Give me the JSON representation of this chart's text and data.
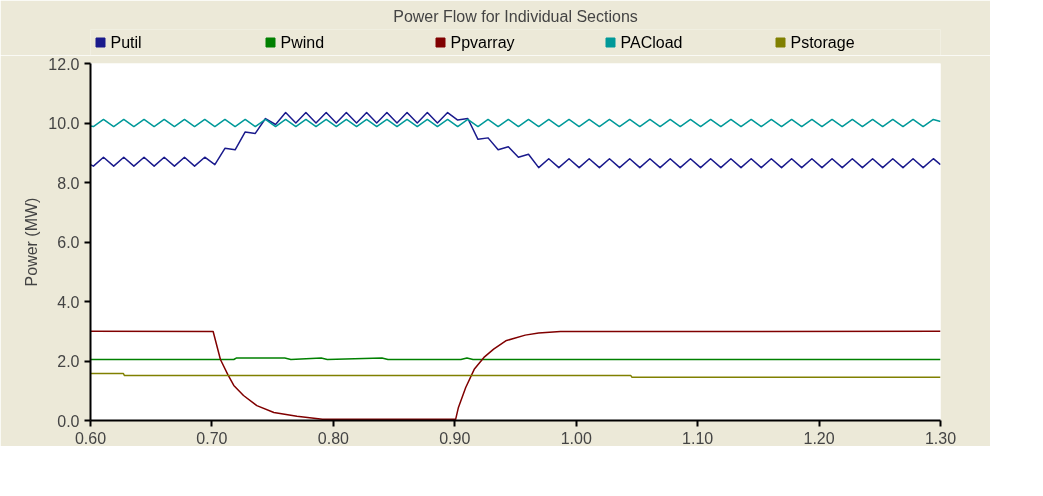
{
  "chart_data": {
    "type": "line",
    "title": "Power Flow for Individual Sections",
    "ylabel": "Power (MW)",
    "x": [
      0.6,
      0.6024,
      0.6107,
      0.6191,
      0.6274,
      0.6357,
      0.6441,
      0.6524,
      0.6607,
      0.6691,
      0.6774,
      0.6857,
      0.6941,
      0.7024,
      0.7107,
      0.7191,
      0.7274,
      0.7357,
      0.7441,
      0.7524,
      0.7607,
      0.7691,
      0.7774,
      0.7857,
      0.7941,
      0.8024,
      0.8107,
      0.8191,
      0.8274,
      0.8357,
      0.8441,
      0.8524,
      0.8607,
      0.8691,
      0.8774,
      0.8857,
      0.8941,
      0.9024,
      0.9107,
      0.9191,
      0.9274,
      0.9357,
      0.9441,
      0.9524,
      0.9607,
      0.9691,
      0.9774,
      0.9857,
      0.9941,
      1.0024,
      1.0107,
      1.0191,
      1.0274,
      1.0357,
      1.0441,
      1.0524,
      1.0607,
      1.0691,
      1.0774,
      1.0857,
      1.0941,
      1.1024,
      1.1107,
      1.1191,
      1.1274,
      1.1357,
      1.1441,
      1.1524,
      1.1607,
      1.1691,
      1.1774,
      1.1857,
      1.1941,
      1.2024,
      1.2107,
      1.2191,
      1.2274,
      1.2357,
      1.2441,
      1.2524,
      1.2607,
      1.2691,
      1.2774,
      1.2857,
      1.2941,
      1.3
    ],
    "series": [
      {
        "name": "Putil",
        "color": "#1a1a8c",
        "values": [
          8.6,
          8.55,
          8.85,
          8.55,
          8.85,
          8.55,
          8.85,
          8.55,
          8.85,
          8.55,
          8.85,
          8.55,
          8.85,
          8.6,
          9.15,
          9.1,
          9.7,
          9.65,
          10.15,
          9.95,
          10.35,
          10.0,
          10.35,
          10.0,
          10.35,
          10.0,
          10.35,
          10.0,
          10.35,
          10.0,
          10.35,
          10.0,
          10.35,
          10.0,
          10.35,
          10.0,
          10.35,
          10.1,
          10.15,
          9.45,
          9.5,
          9.1,
          9.2,
          8.85,
          8.95,
          8.5,
          8.8,
          8.5,
          8.8,
          8.5,
          8.8,
          8.5,
          8.8,
          8.5,
          8.8,
          8.5,
          8.8,
          8.5,
          8.8,
          8.5,
          8.8,
          8.5,
          8.8,
          8.5,
          8.8,
          8.5,
          8.8,
          8.5,
          8.8,
          8.5,
          8.8,
          8.5,
          8.8,
          8.5,
          8.8,
          8.5,
          8.8,
          8.5,
          8.8,
          8.5,
          8.8,
          8.5,
          8.8,
          8.5,
          8.8,
          8.6
        ]
      },
      {
        "name": "Pwind",
        "color": "#008000",
        "x": [
          0.6,
          0.718,
          0.72,
          0.76,
          0.765,
          0.79,
          0.795,
          0.84,
          0.845,
          0.905,
          0.91,
          0.915,
          1.3
        ],
        "values": [
          2.05,
          2.05,
          2.1,
          2.1,
          2.05,
          2.1,
          2.05,
          2.1,
          2.05,
          2.05,
          2.1,
          2.05,
          2.05
        ]
      },
      {
        "name": "Ppvarray",
        "color": "#800000",
        "x": [
          0.6,
          0.701,
          0.707,
          0.713,
          0.718,
          0.726,
          0.737,
          0.751,
          0.77,
          0.791,
          0.9007,
          0.903,
          0.909,
          0.916,
          0.924,
          0.932,
          0.942,
          0.958,
          0.969,
          0.987,
          1.3
        ],
        "values": [
          3.0,
          2.99,
          2.05,
          1.55,
          1.18,
          0.84,
          0.5,
          0.27,
          0.14,
          0.04,
          0.04,
          0.44,
          1.11,
          1.72,
          2.12,
          2.4,
          2.68,
          2.87,
          2.94,
          2.99,
          3.0
        ]
      },
      {
        "name": "PACload",
        "color": "#009999",
        "values": [
          9.9,
          9.88,
          10.12,
          9.88,
          10.12,
          9.88,
          10.12,
          9.88,
          10.12,
          9.88,
          10.12,
          9.88,
          10.12,
          9.88,
          10.12,
          9.88,
          10.12,
          9.88,
          10.12,
          9.88,
          10.12,
          9.88,
          10.12,
          9.88,
          10.12,
          9.88,
          10.12,
          9.88,
          10.12,
          9.88,
          10.12,
          9.88,
          10.12,
          9.88,
          10.12,
          9.88,
          10.12,
          9.88,
          10.12,
          9.88,
          10.12,
          9.88,
          10.12,
          9.88,
          10.12,
          9.88,
          10.12,
          9.88,
          10.12,
          9.88,
          10.12,
          9.88,
          10.12,
          9.88,
          10.12,
          9.88,
          10.12,
          9.88,
          10.12,
          9.88,
          10.12,
          9.88,
          10.12,
          9.88,
          10.12,
          9.88,
          10.12,
          9.88,
          10.12,
          9.88,
          10.12,
          9.88,
          10.12,
          9.88,
          10.12,
          9.88,
          10.12,
          9.88,
          10.12,
          9.88,
          10.12,
          9.88,
          10.12,
          9.88,
          10.12,
          10.05
        ]
      },
      {
        "name": "Pstorage",
        "color": "#808000",
        "x": [
          0.6,
          0.627,
          0.628,
          1.045,
          1.046,
          1.3
        ],
        "values": [
          1.58,
          1.58,
          1.51,
          1.51,
          1.45,
          1.45
        ]
      }
    ],
    "xlim": [
      0.6,
      1.3
    ],
    "xticks": [
      {
        "value": 0.6,
        "label": "0.60"
      },
      {
        "value": 0.7,
        "label": "0.70"
      },
      {
        "value": 0.8,
        "label": "0.80"
      },
      {
        "value": 0.9,
        "label": "0.90"
      },
      {
        "value": 1.0,
        "label": "1.00"
      },
      {
        "value": 1.1,
        "label": "1.10"
      },
      {
        "value": 1.2,
        "label": "1.20"
      },
      {
        "value": 1.3,
        "label": "1.30"
      }
    ],
    "ylim": [
      0,
      12
    ],
    "yticks": [
      {
        "value": 0,
        "label": "0.0"
      },
      {
        "value": 2,
        "label": "2.0"
      },
      {
        "value": 4,
        "label": "4.0"
      },
      {
        "value": 6,
        "label": "6.0"
      },
      {
        "value": 8,
        "label": "8.0"
      },
      {
        "value": 10,
        "label": "10.0"
      },
      {
        "value": 12,
        "label": "12.0"
      }
    ],
    "grid": false,
    "legend": "top",
    "marker": "none",
    "line_style": "solid"
  }
}
